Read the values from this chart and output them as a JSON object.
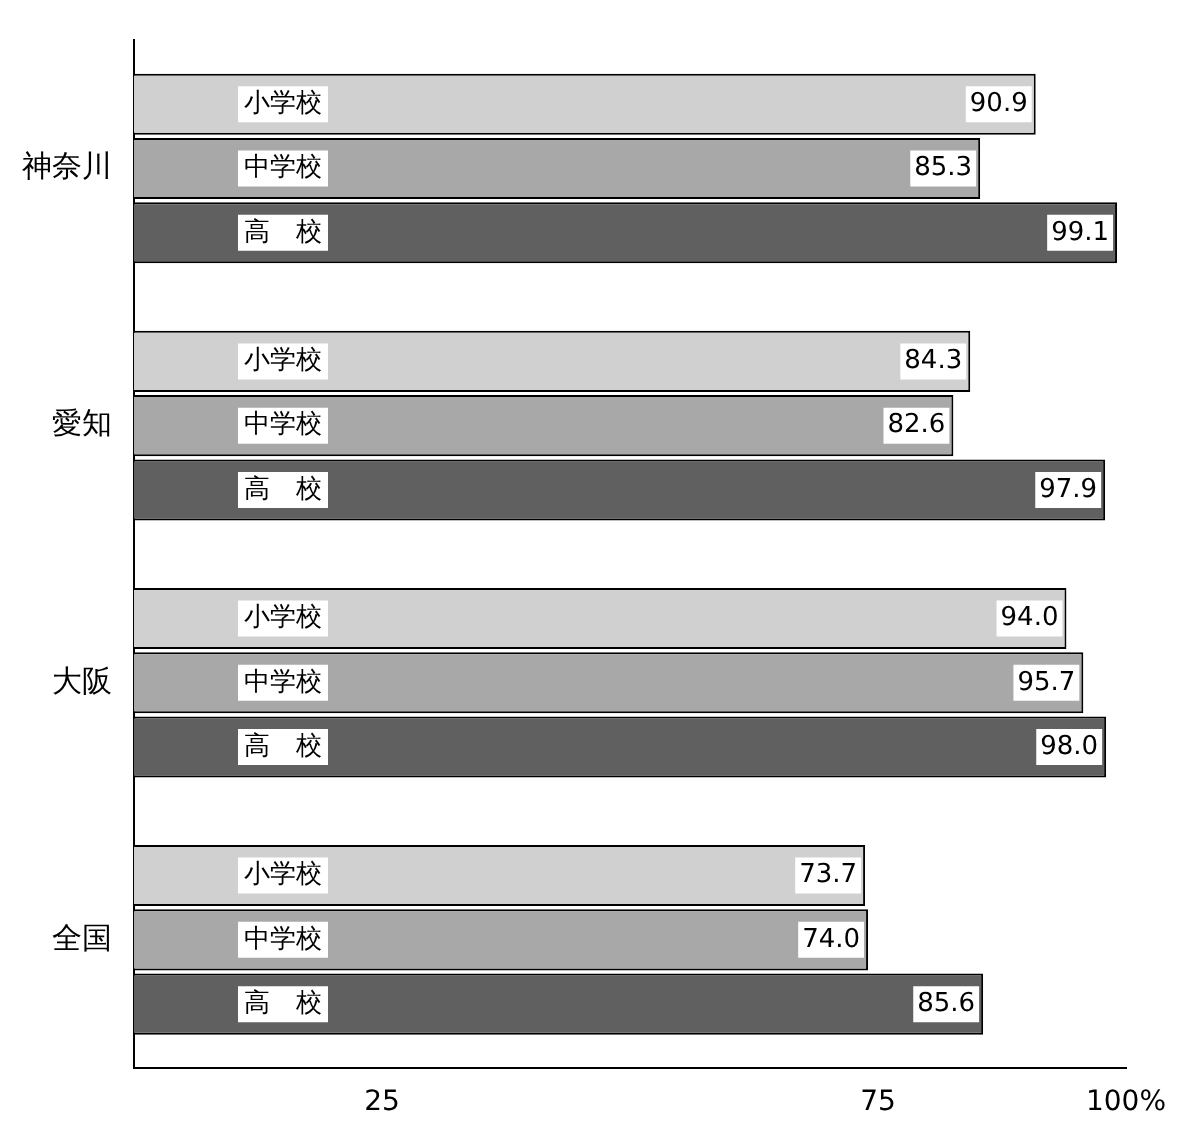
{
  "chart_data": {
    "type": "bar",
    "orientation": "horizontal",
    "categories": [
      "神奈川",
      "愛知",
      "大阪",
      "全国"
    ],
    "series": [
      {
        "name": "小学校",
        "color": "#d0d0d0",
        "values": [
          90.9,
          84.3,
          94.0,
          73.7
        ],
        "value_labels": [
          "90.9",
          "84.3",
          "94.0",
          "73.7"
        ]
      },
      {
        "name": "中学校",
        "color": "#a8a8a8",
        "values": [
          85.3,
          82.6,
          95.7,
          74.0
        ],
        "value_labels": [
          "85.3",
          "82.6",
          "95.7",
          "74.0"
        ]
      },
      {
        "name": "高　校",
        "color": "#606060",
        "values": [
          99.1,
          97.9,
          98.0,
          85.6
        ],
        "value_labels": [
          "99.1",
          "97.9",
          "98.0",
          "85.6"
        ]
      }
    ],
    "xlim": [
      0,
      100
    ],
    "xticks": [
      25,
      75,
      {
        "value": 100,
        "label": "100%"
      }
    ],
    "grid": false,
    "legend": false
  }
}
